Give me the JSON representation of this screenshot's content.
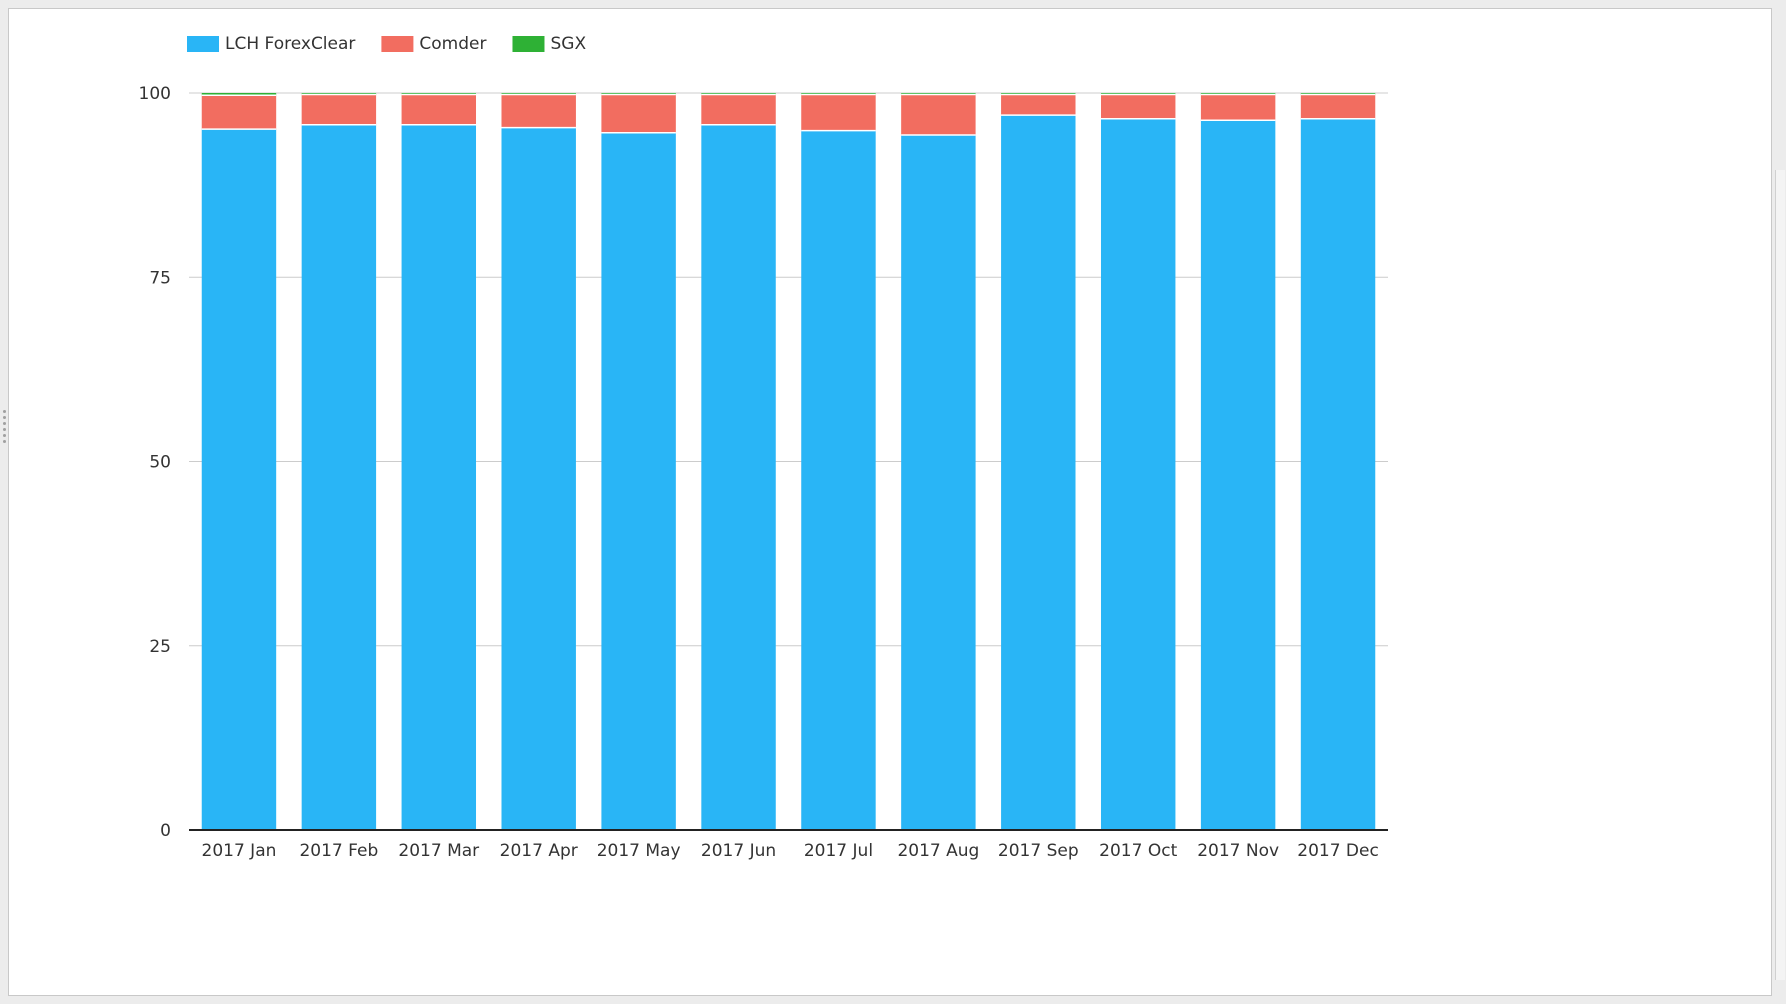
{
  "chart_data": {
    "type": "bar",
    "stacked": true,
    "categories": [
      "2017 Jan",
      "2017 Feb",
      "2017 Mar",
      "2017 Apr",
      "2017 May",
      "2017 Jun",
      "2017 Jul",
      "2017 Aug",
      "2017 Sep",
      "2017 Oct",
      "2017 Nov",
      "2017 Dec"
    ],
    "series": [
      {
        "name": "LCH ForexClear",
        "color": "#29b5f6",
        "values": [
          95.1,
          95.7,
          95.7,
          95.3,
          94.6,
          95.7,
          94.9,
          94.3,
          97.0,
          96.5,
          96.3,
          96.5
        ]
      },
      {
        "name": "Comder",
        "color": "#f26d60",
        "values": [
          4.6,
          4.1,
          4.1,
          4.5,
          5.2,
          4.1,
          4.9,
          5.5,
          2.8,
          3.3,
          3.5,
          3.3
        ]
      },
      {
        "name": "SGX",
        "color": "#2eb135",
        "values": [
          0.3,
          0.2,
          0.2,
          0.2,
          0.2,
          0.2,
          0.2,
          0.2,
          0.2,
          0.2,
          0.2,
          0.2
        ]
      }
    ],
    "ylim": [
      0,
      100
    ],
    "yticks": [
      "0",
      "25",
      "50",
      "75",
      "100"
    ],
    "grid": true,
    "legend": "top-left"
  }
}
